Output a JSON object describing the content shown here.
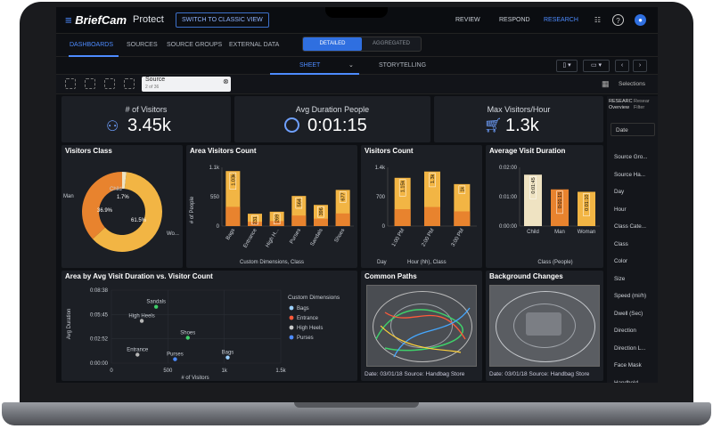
{
  "app": {
    "brand": "BriefCam",
    "product": "Protect",
    "classic_button": "SWITCH TO CLASSIC VIEW"
  },
  "topnav": [
    {
      "label": "REVIEW"
    },
    {
      "label": "RESPOND"
    },
    {
      "label": "RESEARCH",
      "active": true
    }
  ],
  "top_icons": [
    "list-icon",
    "help-icon",
    "user-icon"
  ],
  "tabs": [
    "DASHBOARDS",
    "SOURCES",
    "SOURCE GROUPS",
    "EXTERNAL DATA"
  ],
  "view_toggle": {
    "on": "DETAILED",
    "off": "AGGREGATED"
  },
  "sheet_tabs": {
    "sheet": "SHEET",
    "story": "STORYTELLING"
  },
  "source_filter": {
    "label": "Source",
    "sub": "2 of 36"
  },
  "selections": "Selections",
  "kpis": [
    {
      "title": "# of Visitors",
      "value": "3.45k",
      "icon": "people-icon"
    },
    {
      "title": "Avg Duration People",
      "value": "0:01:15",
      "icon": "gauge-icon"
    },
    {
      "title": "Max Visitors/Hour",
      "value": "1.3k",
      "icon": "cart-icon"
    }
  ],
  "right_panel": {
    "tabs": [
      "RESEARC Overview",
      "Resear Filter"
    ],
    "date": "Date",
    "fields": [
      "Source Gro...",
      "Source Ha...",
      "Day",
      "Hour",
      "Class Cate...",
      "Class",
      "Color",
      "Size",
      "Speed (mi/h)",
      "Dwell (Sec)",
      "Direction",
      "Direction L...",
      "Face Mask",
      "Handheld ..."
    ]
  },
  "visitors_class": {
    "title": "Visitors Class",
    "chart_data": {
      "type": "pie",
      "slices": [
        {
          "name": "Woman",
          "value": 61.5,
          "label": "Wo..."
        },
        {
          "name": "Man",
          "value": 36.9,
          "label": "Man"
        },
        {
          "name": "Child",
          "value": 1.7,
          "label": "Child"
        }
      ],
      "labels": [
        "61.5%",
        "36.9%",
        "1.7%"
      ]
    }
  },
  "area_visitors": {
    "title": "Area Visitors Count",
    "chart_data": {
      "type": "bar",
      "categories": [
        "Bags",
        "Entrance",
        "High H...",
        "Purses",
        "Sandals",
        "Shoes"
      ],
      "values": [
        1030,
        231,
        269,
        564,
        396,
        677
      ],
      "labels": [
        "1.03k",
        "231",
        "269",
        "564",
        "396",
        "677"
      ],
      "ylabel": "# of People",
      "xlabel": "Custom Dimensions, Class",
      "yticks": [
        "0",
        "550",
        "1.1k"
      ],
      "ylim": [
        0,
        1100
      ]
    }
  },
  "visitors_count": {
    "title": "Visitors Count",
    "chart_data": {
      "type": "bar",
      "categories": [
        "1:00 PM",
        "2:00 PM",
        "3:00 PM"
      ],
      "values": [
        1150,
        1300,
        1000
      ],
      "labels": [
        "1.15k",
        "1.3k",
        "1k"
      ],
      "yticks": [
        "0",
        "700",
        "1.4k"
      ],
      "ylim": [
        0,
        1400
      ],
      "legend": [
        "Day",
        "Hour (hh), Class"
      ]
    }
  },
  "avg_visit": {
    "title": "Average Visit Duration",
    "chart_data": {
      "type": "bar",
      "categories": [
        "Child",
        "Man",
        "Woman"
      ],
      "values": [
        105,
        75,
        70
      ],
      "labels": [
        "0:01:45",
        "0:01:15",
        "0:01:10"
      ],
      "yticks": [
        "0:00:00",
        "0:01:00",
        "0:02:00"
      ],
      "ylim": [
        0,
        120
      ],
      "xlabel": "Class (People)"
    }
  },
  "scatter": {
    "title": "Area by Avg Visit Duration vs. Visitor Count",
    "chart_data": {
      "type": "scatter",
      "xlabel": "# of Visitors",
      "ylabel": "Avg Duration",
      "xticks": [
        "0",
        "500",
        "1k",
        "1.5k"
      ],
      "yticks": [
        "0:00:00",
        "0:02:52",
        "0:05:45",
        "0:08:38"
      ],
      "xlim": [
        0,
        1500
      ],
      "ylim": [
        0,
        518
      ],
      "points": [
        {
          "name": "Sandals",
          "x": 396,
          "y": 400
        },
        {
          "name": "High Heels",
          "x": 269,
          "y": 300
        },
        {
          "name": "Shoes",
          "x": 677,
          "y": 180
        },
        {
          "name": "Entrance",
          "x": 231,
          "y": 60
        },
        {
          "name": "Purses",
          "x": 564,
          "y": 28
        },
        {
          "name": "Bags",
          "x": 1030,
          "y": 40
        }
      ]
    },
    "legend_title": "Custom Dimensions",
    "legend": [
      "Bags",
      "Entrance",
      "High Heels",
      "Purses"
    ]
  },
  "common_paths": {
    "title": "Common Paths",
    "caption": "Date: 03/01/18 Source: Handbag Store"
  },
  "background_changes": {
    "title": "Background Changes",
    "caption": "Date: 03/01/18 Source: Handbag Store"
  },
  "colors": {
    "accent": "#4d8bff",
    "bar_orange": "#e8832e",
    "bar_yellow": "#f2b544",
    "bar_cream": "#efe3c2",
    "panel": "#1c1f25"
  }
}
